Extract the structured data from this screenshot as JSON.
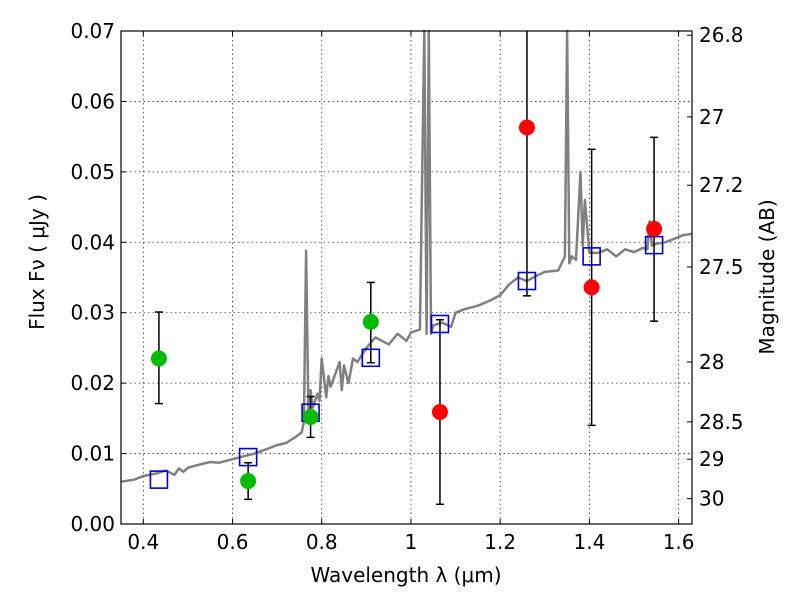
{
  "chart_data": {
    "type": "scatter",
    "title": "",
    "xlabel": "Wavelength  λ (μm)",
    "ylabel": "Flux  Fν  ( μJy )",
    "y2label": "Magnitude (AB)",
    "xlim": [
      0.35,
      1.63
    ],
    "ylim": [
      0.0,
      0.07
    ],
    "grid": true,
    "x_ticks": [
      0.4,
      0.6,
      0.8,
      1.0,
      1.2,
      1.4,
      1.6
    ],
    "x_tick_labels": [
      "0.4",
      "0.6",
      "0.8",
      "1",
      "1.2",
      "1.4",
      "1.6"
    ],
    "y_ticks": [
      0.0,
      0.01,
      0.02,
      0.03,
      0.04,
      0.05,
      0.06,
      0.07
    ],
    "y_tick_labels": [
      "0.00",
      "0.01",
      "0.02",
      "0.03",
      "0.04",
      "0.05",
      "0.06",
      "0.07"
    ],
    "y2_ticks": [
      {
        "label": "26.8",
        "flux": 0.0694
      },
      {
        "label": "27",
        "flux": 0.0578
      },
      {
        "label": "27.2",
        "flux": 0.0481
      },
      {
        "label": "27.5",
        "flux": 0.0365
      },
      {
        "label": "28",
        "flux": 0.023
      },
      {
        "label": "28.5",
        "flux": 0.0145
      },
      {
        "label": "29",
        "flux": 0.0092
      },
      {
        "label": "30",
        "flux": 0.0036
      }
    ],
    "colors": {
      "green": "#00bb00",
      "red": "#ff0000",
      "model_box": "#0000cc",
      "spectrum": "#808080",
      "errorbar": "#000000"
    },
    "series": [
      {
        "marker": "green-circle",
        "points": [
          {
            "x": 0.435,
            "y": 0.0235,
            "ylo": 0.0171,
            "yhi": 0.0301
          },
          {
            "x": 0.635,
            "y": 0.0061,
            "ylo": 0.0035,
            "yhi": 0.0087
          },
          {
            "x": 0.775,
            "y": 0.0152,
            "ylo": 0.0123,
            "yhi": 0.0181
          },
          {
            "x": 0.91,
            "y": 0.0287,
            "ylo": 0.0229,
            "yhi": 0.0343
          }
        ]
      },
      {
        "marker": "red-circle",
        "points": [
          {
            "x": 1.065,
            "y": 0.0159,
            "ylo": 0.0028,
            "yhi": 0.029
          },
          {
            "x": 1.26,
            "y": 0.0563,
            "ylo": 0.0324,
            "yhi": 0.0702
          },
          {
            "x": 1.405,
            "y": 0.0336,
            "ylo": 0.014,
            "yhi": 0.0532
          },
          {
            "x": 1.545,
            "y": 0.0419,
            "ylo": 0.0288,
            "yhi": 0.0549
          }
        ]
      },
      {
        "marker": "blue-square",
        "points": [
          {
            "x": 0.435,
            "y": 0.0063
          },
          {
            "x": 0.635,
            "y": 0.0095
          },
          {
            "x": 0.775,
            "y": 0.0158
          },
          {
            "x": 0.91,
            "y": 0.0236
          },
          {
            "x": 1.065,
            "y": 0.0284
          },
          {
            "x": 1.26,
            "y": 0.0345
          },
          {
            "x": 1.405,
            "y": 0.038
          },
          {
            "x": 1.545,
            "y": 0.0396
          }
        ]
      },
      {
        "marker": "gray-line",
        "x": [
          0.35,
          0.38,
          0.4,
          0.43,
          0.45,
          0.47,
          0.48,
          0.49,
          0.5,
          0.53,
          0.55,
          0.57,
          0.6,
          0.63,
          0.65,
          0.68,
          0.7,
          0.72,
          0.74,
          0.755,
          0.76,
          0.765,
          0.77,
          0.775,
          0.78,
          0.79,
          0.795,
          0.8,
          0.81,
          0.815,
          0.82,
          0.84,
          0.845,
          0.85,
          0.86,
          0.87,
          0.88,
          0.9,
          0.92,
          0.95,
          0.97,
          0.99,
          1.0,
          1.02,
          1.03,
          1.035,
          1.04,
          1.045,
          1.05,
          1.07,
          1.09,
          1.1,
          1.12,
          1.15,
          1.18,
          1.2,
          1.22,
          1.24,
          1.26,
          1.28,
          1.3,
          1.33,
          1.345,
          1.35,
          1.355,
          1.36,
          1.37,
          1.38,
          1.385,
          1.39,
          1.4,
          1.42,
          1.44,
          1.46,
          1.48,
          1.5,
          1.52,
          1.53,
          1.535,
          1.54,
          1.55,
          1.57,
          1.59,
          1.61,
          1.63
        ],
        "y": [
          0.006,
          0.0063,
          0.0068,
          0.0072,
          0.0076,
          0.007,
          0.0079,
          0.0074,
          0.008,
          0.0085,
          0.0088,
          0.0087,
          0.0092,
          0.0097,
          0.01,
          0.0107,
          0.0112,
          0.0115,
          0.0123,
          0.013,
          0.0145,
          0.0388,
          0.016,
          0.019,
          0.0165,
          0.0185,
          0.0175,
          0.0235,
          0.018,
          0.021,
          0.0195,
          0.023,
          0.019,
          0.0225,
          0.02,
          0.0235,
          0.023,
          0.025,
          0.0265,
          0.0255,
          0.027,
          0.026,
          0.0272,
          0.0276,
          0.07,
          0.027,
          0.07,
          0.027,
          0.0282,
          0.0286,
          0.028,
          0.03,
          0.0305,
          0.031,
          0.0318,
          0.0325,
          0.034,
          0.035,
          0.0345,
          0.0352,
          0.0358,
          0.036,
          0.038,
          0.07,
          0.037,
          0.038,
          0.0375,
          0.05,
          0.0395,
          0.046,
          0.0385,
          0.0385,
          0.039,
          0.038,
          0.039,
          0.0386,
          0.0392,
          0.039,
          0.043,
          0.0395,
          0.0398,
          0.04,
          0.0405,
          0.041,
          0.0412
        ]
      }
    ]
  }
}
